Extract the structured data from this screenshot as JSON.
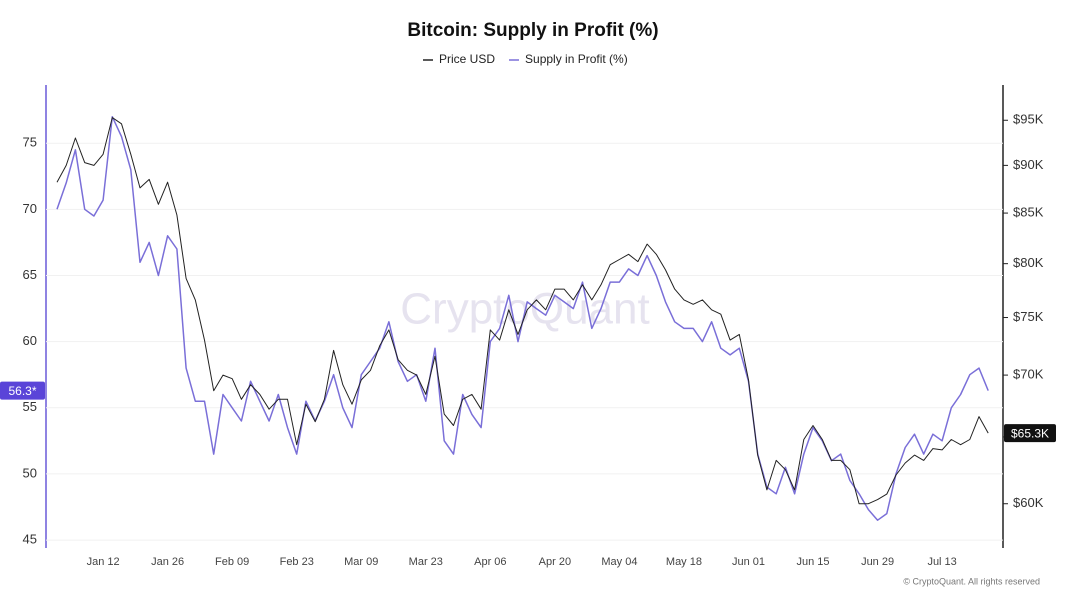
{
  "chart_data": {
    "type": "line",
    "title": "Bitcoin: Supply in Profit (%)",
    "watermark": "CryptoQuant",
    "footer": "© CryptoQuant. All rights reserved",
    "categories": [
      null,
      null,
      null,
      null,
      null,
      "Jan 12",
      null,
      null,
      null,
      null,
      null,
      null,
      "Jan 26",
      null,
      null,
      null,
      null,
      null,
      null,
      "Feb 09",
      null,
      null,
      null,
      null,
      null,
      null,
      "Feb 23",
      null,
      null,
      null,
      null,
      null,
      null,
      "Mar 09",
      null,
      null,
      null,
      null,
      null,
      null,
      "Mar 23",
      null,
      null,
      null,
      null,
      null,
      null,
      "Apr 06",
      null,
      null,
      null,
      null,
      null,
      null,
      "Apr 20",
      null,
      null,
      null,
      null,
      null,
      null,
      "May 04",
      null,
      null,
      null,
      null,
      null,
      null,
      "May 18",
      null,
      null,
      null,
      null,
      null,
      null,
      "Jun 01",
      null,
      null,
      null,
      null,
      null,
      null,
      "Jun 15",
      null,
      null,
      null,
      null,
      null,
      null,
      "Jun 29",
      null,
      null,
      null,
      null,
      null,
      null,
      "Jul 13",
      null,
      null,
      null,
      null,
      null
    ],
    "series": [
      {
        "name": "Price USD",
        "color": "#222222",
        "axis": "y2",
        "last_label": "$65.3K",
        "values": [
          88200,
          90000,
          93000,
          90300,
          90000,
          91200,
          95300,
          94600,
          91200,
          87600,
          88500,
          85900,
          88200,
          84800,
          78600,
          76600,
          73000,
          68700,
          70000,
          69700,
          68000,
          69200,
          68400,
          67200,
          68000,
          68000,
          64400,
          67600,
          66200,
          68000,
          72100,
          69200,
          67600,
          69600,
          70400,
          72500,
          73900,
          71300,
          70400,
          70000,
          68400,
          71600,
          66800,
          65900,
          68000,
          68400,
          67200,
          73900,
          73000,
          75700,
          73500,
          75700,
          76600,
          75700,
          77600,
          77600,
          76600,
          78000,
          76600,
          78000,
          79900,
          80400,
          80900,
          80200,
          81900,
          80900,
          79400,
          77600,
          76600,
          76200,
          76600,
          75700,
          75300,
          73000,
          73500,
          69600,
          63600,
          61000,
          63200,
          62500,
          61000,
          64800,
          65900,
          64800,
          63200,
          63200,
          62500,
          60000,
          60000,
          60300,
          60700,
          62100,
          63000,
          63600,
          63200,
          64100,
          64000,
          64800,
          64400,
          64800,
          66600,
          65300
        ]
      },
      {
        "name": "Supply in Profit (%)",
        "color": "#7a6fd8",
        "last_label": "56.3*",
        "values": [
          70,
          72,
          74.5,
          70,
          69.5,
          70.7,
          77,
          75.5,
          73,
          66,
          67.5,
          65,
          68,
          67,
          58,
          55.5,
          55.5,
          51.5,
          56,
          55,
          54,
          57,
          55.5,
          54,
          56,
          53.5,
          51.5,
          55.5,
          54,
          55.5,
          57.5,
          55,
          53.5,
          57.5,
          58.5,
          59.5,
          61.5,
          58.5,
          57,
          57.5,
          55.5,
          59.5,
          52.5,
          51.5,
          56,
          54.5,
          53.5,
          60,
          61,
          63.5,
          60,
          63,
          62.5,
          62,
          63.5,
          63,
          62.5,
          64.5,
          61,
          62.5,
          64.5,
          64.5,
          65.5,
          65,
          66.5,
          65,
          63,
          61.5,
          61,
          61,
          60,
          61.5,
          59.5,
          59,
          59.5,
          57,
          51.5,
          49,
          48.5,
          50.5,
          48.5,
          51.5,
          53.5,
          52.5,
          51,
          51.5,
          49.5,
          48.5,
          47.3,
          46.5,
          47,
          50,
          52,
          53,
          51.5,
          53,
          52.5,
          55,
          56,
          57.5,
          58,
          56.3
        ]
      }
    ],
    "ylim": [
      44.4,
      79.4
    ],
    "yticks": [
      45,
      50,
      55,
      60,
      65,
      70,
      75
    ],
    "y2lim": [
      56900,
      99100
    ],
    "y2log": true,
    "y2ticks": [
      {
        "value": 60000,
        "label": "$60K"
      },
      {
        "value": 65000,
        "label": "$65K"
      },
      {
        "value": 70000,
        "label": "$70K"
      },
      {
        "value": 75000,
        "label": "$75K"
      },
      {
        "value": 80000,
        "label": "$80K"
      },
      {
        "value": 85000,
        "label": "$85K"
      },
      {
        "value": 90000,
        "label": "$90K"
      },
      {
        "value": 95000,
        "label": "$95K"
      }
    ],
    "grid": true
  }
}
